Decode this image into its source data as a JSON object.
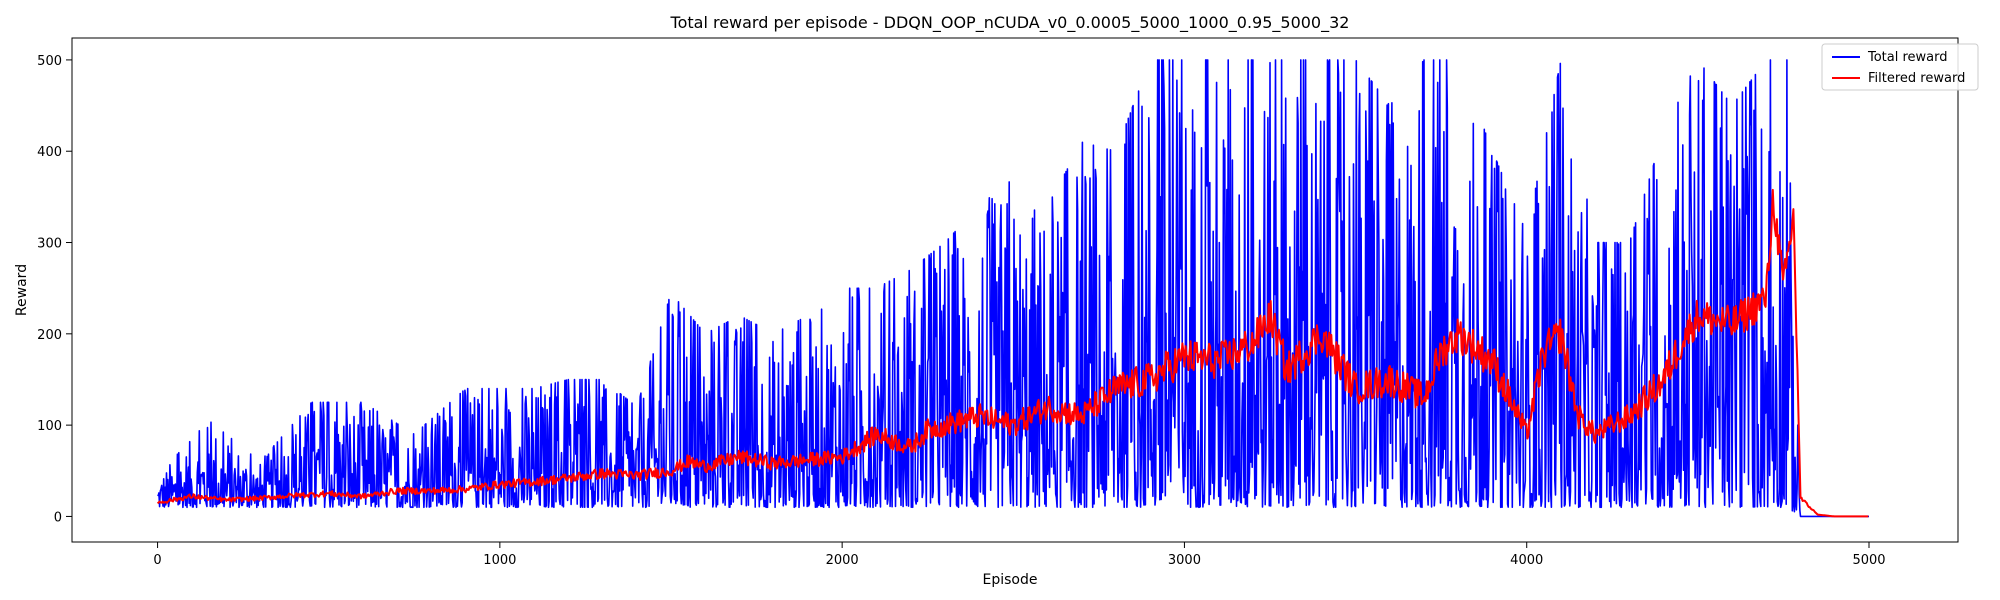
{
  "chart_data": {
    "type": "line",
    "title": "Total reward per episode - DDQN_OOP_nCUDA_v0_0.0005_5000_1000_0.95_5000_32",
    "xlabel": "Episode",
    "ylabel": "Reward",
    "xlim": [
      -250,
      5260
    ],
    "ylim": [
      -28,
      524
    ],
    "xticks": [
      0,
      1000,
      2000,
      3000,
      4000,
      5000
    ],
    "yticks": [
      0,
      100,
      200,
      300,
      400,
      500
    ],
    "grid": false,
    "legend_position": "top-right",
    "series": [
      {
        "name": "Total reward",
        "color": "#0000ff",
        "style": "noisy raw per-episode reward",
        "x": [
          0,
          150,
          300,
          450,
          600,
          750,
          900,
          1000,
          1100,
          1200,
          1300,
          1400,
          1500,
          1600,
          1700,
          1800,
          1900,
          2000,
          2100,
          2200,
          2300,
          2400,
          2500,
          2600,
          2700,
          2800,
          2900,
          3000,
          3100,
          3200,
          3300,
          3400,
          3500,
          3600,
          3700,
          3800,
          3900,
          4000,
          4100,
          4200,
          4300,
          4400,
          4500,
          4600,
          4700,
          4760,
          4800,
          4900,
          5000
        ],
        "min": [
          10,
          10,
          10,
          10,
          10,
          10,
          10,
          10,
          10,
          10,
          10,
          10,
          10,
          10,
          10,
          10,
          10,
          10,
          10,
          10,
          10,
          10,
          10,
          10,
          10,
          10,
          10,
          10,
          10,
          10,
          10,
          10,
          10,
          10,
          10,
          10,
          10,
          10,
          10,
          10,
          10,
          10,
          10,
          10,
          10,
          10,
          0,
          0,
          0
        ],
        "max": [
          45,
          105,
          60,
          125,
          125,
          90,
          140,
          140,
          140,
          150,
          150,
          120,
          245,
          200,
          220,
          200,
          220,
          250,
          250,
          270,
          300,
          340,
          370,
          340,
          410,
          400,
          500,
          500,
          500,
          500,
          500,
          500,
          500,
          450,
          500,
          500,
          400,
          310,
          500,
          300,
          300,
          420,
          500,
          450,
          500,
          500,
          0,
          0,
          0
        ]
      },
      {
        "name": "Filtered reward",
        "color": "#ff0000",
        "style": "smoothed running average",
        "x": [
          0,
          100,
          200,
          300,
          400,
          500,
          600,
          700,
          800,
          900,
          1000,
          1100,
          1200,
          1300,
          1400,
          1500,
          1550,
          1600,
          1700,
          1800,
          1900,
          2000,
          2100,
          2200,
          2250,
          2300,
          2400,
          2500,
          2600,
          2700,
          2800,
          2900,
          3000,
          3100,
          3200,
          3250,
          3300,
          3400,
          3500,
          3600,
          3700,
          3750,
          3800,
          3900,
          4000,
          4050,
          4100,
          4150,
          4200,
          4300,
          4400,
          4450,
          4500,
          4600,
          4700,
          4720,
          4750,
          4780,
          4800,
          4850,
          4900,
          5000
        ],
        "y": [
          15,
          22,
          18,
          20,
          23,
          25,
          22,
          28,
          28,
          30,
          35,
          38,
          42,
          47,
          45,
          50,
          60,
          55,
          65,
          58,
          62,
          65,
          90,
          75,
          95,
          100,
          110,
          100,
          120,
          110,
          140,
          150,
          175,
          170,
          190,
          220,
          160,
          200,
          140,
          150,
          130,
          180,
          200,
          170,
          90,
          180,
          200,
          110,
          90,
          110,
          150,
          190,
          220,
          210,
          240,
          350,
          250,
          330,
          20,
          2,
          0,
          0
        ]
      }
    ]
  }
}
